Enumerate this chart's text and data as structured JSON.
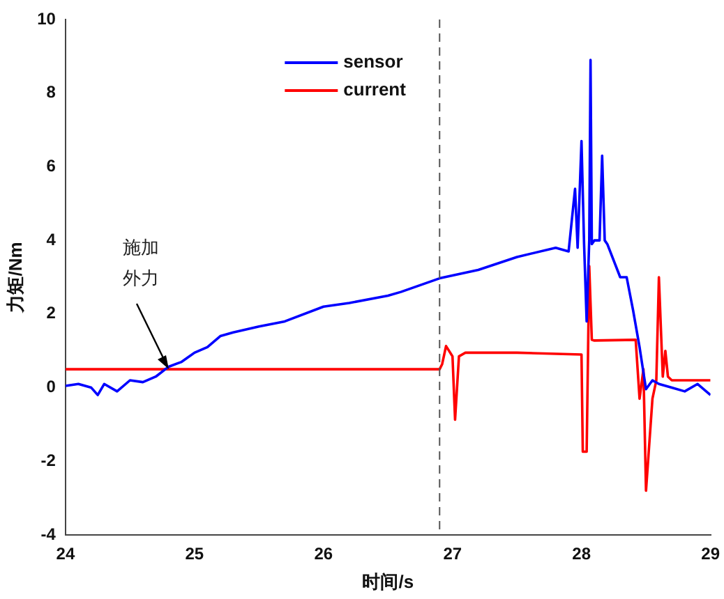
{
  "chart_data": {
    "type": "line",
    "xlabel": "时间/s",
    "ylabel": "力矩/Nm",
    "xlim": [
      24,
      29
    ],
    "xticks": [
      24,
      25,
      26,
      27,
      28,
      29
    ],
    "ylim": [
      -4,
      10
    ],
    "yticks": [
      -4,
      -2,
      0,
      2,
      4,
      6,
      8,
      10
    ],
    "grid": false,
    "legend": "top",
    "marker": "none",
    "line_style": "solid",
    "series": [
      {
        "name": "sensor",
        "color": "#0000ff",
        "x": [
          24.0,
          24.1,
          24.2,
          24.25,
          24.3,
          24.4,
          24.5,
          24.6,
          24.7,
          24.8,
          24.9,
          25.0,
          25.1,
          25.2,
          25.3,
          25.5,
          25.7,
          26.0,
          26.2,
          26.5,
          26.6,
          26.9,
          27.2,
          27.5,
          27.8,
          27.9,
          27.95,
          27.97,
          28.0,
          28.02,
          28.04,
          28.06,
          28.07,
          28.08,
          28.1,
          28.14,
          28.16,
          28.18,
          28.2,
          28.3,
          28.35,
          28.4,
          28.45,
          28.5,
          28.55,
          28.6,
          28.7,
          28.8,
          28.9,
          29.0
        ],
        "values": [
          0.05,
          0.1,
          0.0,
          -0.2,
          0.1,
          -0.1,
          0.2,
          0.15,
          0.3,
          0.57,
          0.7,
          0.95,
          1.1,
          1.4,
          1.5,
          1.66,
          1.8,
          2.2,
          2.3,
          2.5,
          2.6,
          2.97,
          3.2,
          3.55,
          3.8,
          3.7,
          5.4,
          3.8,
          6.7,
          3.9,
          1.8,
          4.0,
          8.9,
          3.9,
          4.0,
          4.0,
          6.3,
          4.0,
          3.9,
          3.0,
          3.0,
          2.1,
          1.1,
          -0.04,
          0.2,
          0.1,
          0.0,
          -0.1,
          0.1,
          -0.2
        ]
      },
      {
        "name": "current",
        "color": "#ff0000",
        "x": [
          24.0,
          24.5,
          25.0,
          25.5,
          26.0,
          26.5,
          26.9,
          26.92,
          26.95,
          27.0,
          27.02,
          27.05,
          27.1,
          27.5,
          28.0,
          28.01,
          28.04,
          28.06,
          28.08,
          28.1,
          28.42,
          28.45,
          28.48,
          28.5,
          28.55,
          28.58,
          28.6,
          28.63,
          28.65,
          28.67,
          28.7,
          29.0
        ],
        "values": [
          0.5,
          0.5,
          0.5,
          0.5,
          0.5,
          0.5,
          0.5,
          0.64,
          1.13,
          0.85,
          -0.87,
          0.85,
          0.95,
          0.95,
          0.9,
          -1.74,
          -1.74,
          3.3,
          1.3,
          1.28,
          1.3,
          -0.3,
          0.5,
          -2.8,
          -0.3,
          0.2,
          3.0,
          0.3,
          1.0,
          0.3,
          0.2,
          0.2
        ]
      }
    ],
    "ref_lines": [
      {
        "axis": "x",
        "value": 26.9,
        "line_style": "dashed",
        "color": "#555555"
      }
    ],
    "annotations": [
      {
        "text": "施加外力",
        "x": 24.8,
        "y": 0.5
      }
    ]
  }
}
